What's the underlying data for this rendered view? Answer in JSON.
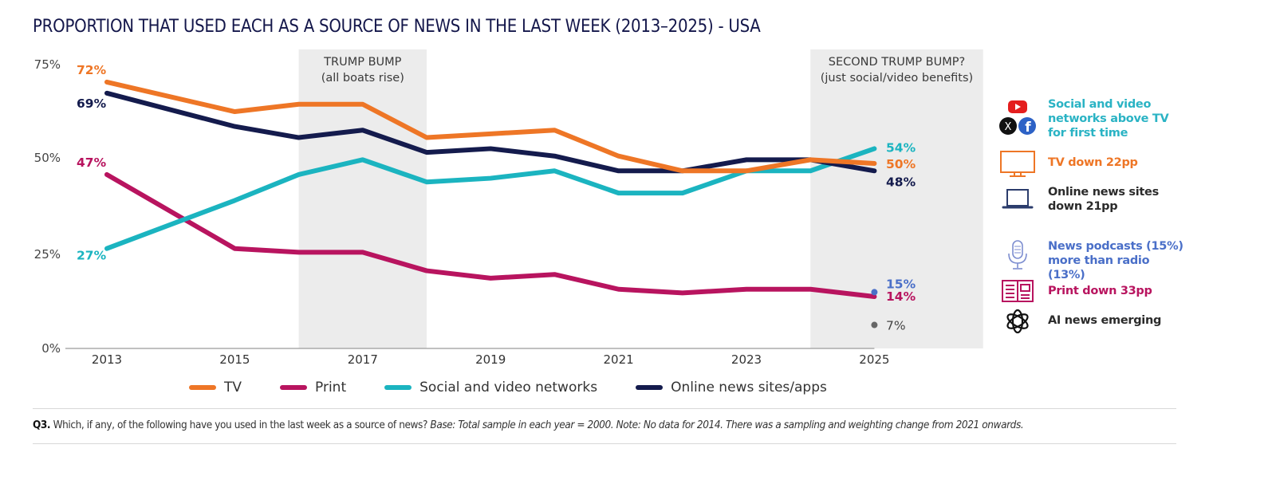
{
  "title": "PROPORTION THAT USED EACH AS A SOURCE OF NEWS IN THE LAST WEEK (2013–2025) - USA",
  "chart_data": {
    "type": "line",
    "title": "PROPORTION THAT USED EACH AS A SOURCE OF NEWS IN THE LAST WEEK (2013–2025) - USA",
    "xlabel": "",
    "ylabel": "",
    "x": [
      2013,
      2015,
      2016,
      2017,
      2018,
      2019,
      2020,
      2021,
      2022,
      2023,
      2024,
      2025
    ],
    "x_ticks": [
      "2013",
      "2015",
      "2017",
      "2019",
      "2021",
      "2023",
      "2025"
    ],
    "x_range": [
      2013,
      2025
    ],
    "y_ticks": [
      "0%",
      "25%",
      "50%",
      "75%"
    ],
    "ylim": [
      0,
      75
    ],
    "grid": false,
    "legend_position": "bottom",
    "series": [
      {
        "name": "TV",
        "color": "#ee7626",
        "values": [
          72,
          64,
          66,
          66,
          57,
          58,
          59,
          52,
          48,
          48,
          51,
          50
        ],
        "start_label": "72%",
        "end_label": "50%"
      },
      {
        "name": "Print",
        "color": "#b8145f",
        "values": [
          47,
          27,
          26,
          26,
          21,
          19,
          20,
          16,
          15,
          16,
          16,
          14
        ],
        "start_label": "47%",
        "end_label": "14%"
      },
      {
        "name": "Social and video networks",
        "color": "#1bb4c0",
        "values": [
          27,
          40,
          47,
          51,
          45,
          46,
          48,
          42,
          42,
          48,
          48,
          54
        ],
        "start_label": "27%",
        "end_label": "54%"
      },
      {
        "name": "Online news sites/apps",
        "color": "#141b4d",
        "values": [
          69,
          60,
          57,
          59,
          53,
          54,
          52,
          48,
          48,
          51,
          51,
          48
        ],
        "start_label": "69%",
        "end_label": "48%"
      }
    ],
    "extra_points": [
      {
        "name": "News podcasts",
        "x": 2025,
        "y": 15,
        "color": "#4a6fc8",
        "label": "15%"
      },
      {
        "name": "AI news",
        "x": 2025,
        "y": 7,
        "color": "#666666",
        "label": "7%"
      }
    ],
    "shaded_regions": [
      {
        "x_start": 2016,
        "x_end": 2018,
        "title": "TRUMP BUMP",
        "subtitle": "(all boats rise)"
      },
      {
        "x_start": 2024,
        "x_end": 2026.7,
        "title": "SECOND TRUMP BUMP?",
        "subtitle": "(just social/video benefits)"
      }
    ]
  },
  "callouts": [
    {
      "icon": "social-logos-icon",
      "text": "Social and video networks above TV for first time",
      "color": "#2ab3c4"
    },
    {
      "icon": "tv-icon",
      "text": "TV down 22pp",
      "color": "#ee7626"
    },
    {
      "icon": "laptop-icon",
      "text": "Online news sites down 21pp",
      "color": "#2b2b2b"
    },
    {
      "icon": "microphone-icon",
      "text": "News podcasts (15%) more than radio (13%)",
      "color": "#4a6fc8"
    },
    {
      "icon": "newspaper-icon",
      "text": "Print down 33pp",
      "color": "#b8145f"
    },
    {
      "icon": "openai-logo-icon",
      "text": "AI news emerging",
      "color": "#2b2b2b"
    }
  ],
  "note": {
    "q": "Q3.",
    "question": " Which, if any, of the following have you used in the last week as a source of news? ",
    "italic": "Base: Total sample in each year = 2000. Note: No data for 2014. There was a sampling and weighting change from 2021 onwards."
  }
}
